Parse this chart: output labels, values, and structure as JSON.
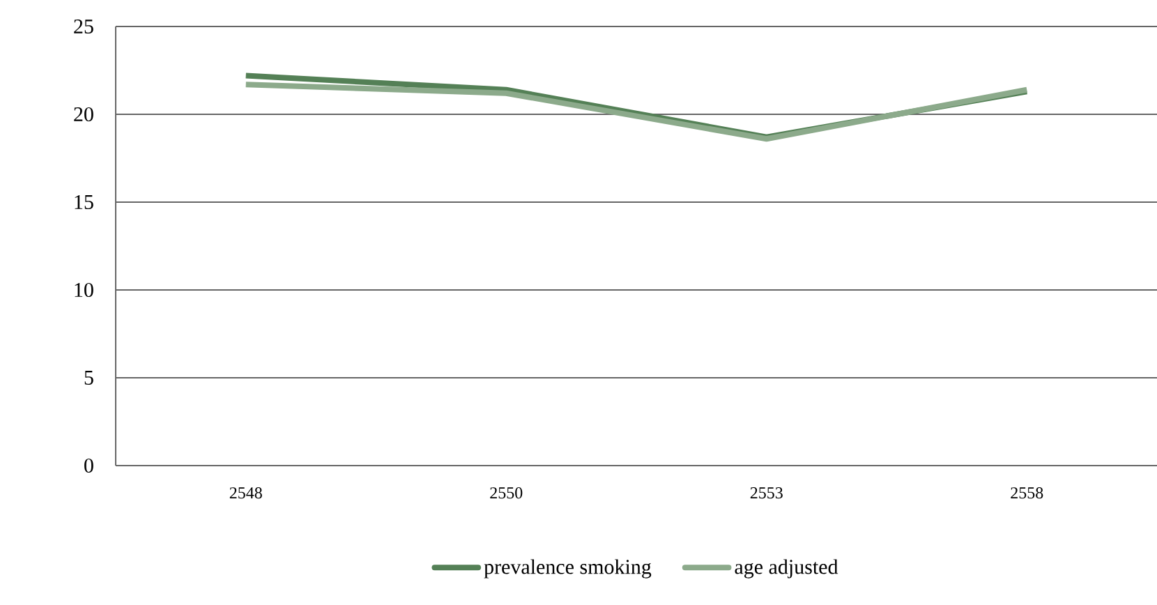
{
  "chart_data": {
    "type": "line",
    "categories": [
      "2548",
      "2550",
      "2553",
      "2558"
    ],
    "series": [
      {
        "name": "prevalence smoking",
        "color": "#548056",
        "values": [
          22.2,
          21.4,
          18.7,
          21.3
        ]
      },
      {
        "name": "age adjusted",
        "color": "#8caa8b",
        "values": [
          21.7,
          21.2,
          18.6,
          21.4
        ]
      }
    ],
    "ylim": [
      0,
      25
    ],
    "yticks": [
      0,
      5,
      10,
      15,
      20,
      25
    ],
    "grid": "y",
    "legend": "bottom",
    "marker": "none",
    "line_style": "solid"
  }
}
